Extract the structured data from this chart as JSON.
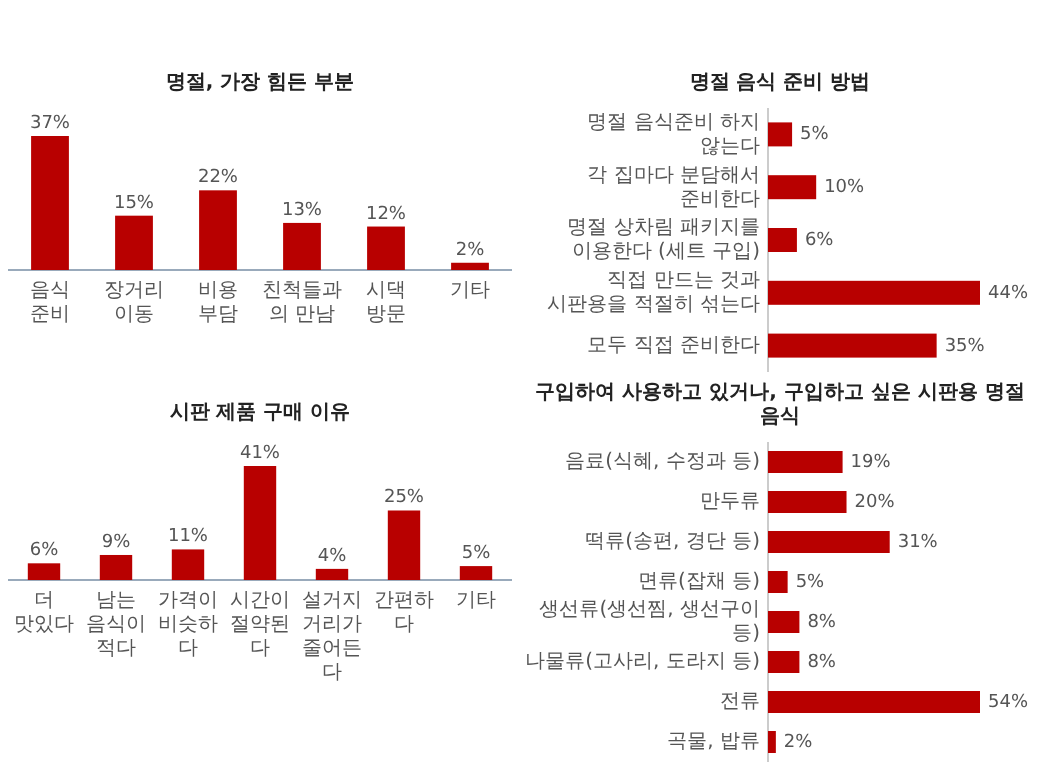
{
  "chart_data": [
    {
      "type": "bar",
      "title": "명절, 가장 힘든 부분",
      "categories": [
        "음식 준비",
        "장거리 이동",
        "비용 부담",
        "친척들과의 만남",
        "시댁 방문",
        "기타"
      ],
      "values": [
        37,
        15,
        22,
        13,
        12,
        2
      ],
      "value_labels": [
        "37%",
        "15%",
        "22%",
        "13%",
        "12%",
        "2%"
      ],
      "color": "#b80000"
    },
    {
      "type": "bar",
      "orientation": "horizontal",
      "title": "명절 음식 준비 방법",
      "categories": [
        "명절 음식준비 하지 않는다",
        "각 집마다 분담해서 준비한다",
        "명절 상차림 패키지를 이용한다 (세트 구입)",
        "직접 만드는 것과 시판용을 적절히 섞는다",
        "모두 직접 준비한다"
      ],
      "values": [
        5,
        10,
        6,
        44,
        35
      ],
      "value_labels": [
        "5%",
        "10%",
        "6%",
        "44%",
        "35%"
      ],
      "color": "#b80000"
    },
    {
      "type": "bar",
      "title": "시판 제품 구매 이유",
      "categories": [
        "더 맛있다",
        "남는 음식이 적다",
        "가격이 비슷하다",
        "시간이 절약된다",
        "설거지 거리가 줄어든다",
        "간편하다",
        "기타"
      ],
      "values": [
        6,
        9,
        11,
        41,
        4,
        25,
        5
      ],
      "value_labels": [
        "6%",
        "9%",
        "11%",
        "41%",
        "4%",
        "25%",
        "5%"
      ],
      "color": "#b80000"
    },
    {
      "type": "bar",
      "orientation": "horizontal",
      "title": "구입하여 사용하고 있거나, 구입하고 싶은 시판용 명절 음식",
      "categories": [
        "음료(식혜, 수정과 등)",
        "만두류",
        "떡류(송편, 경단 등)",
        "면류(잡채 등)",
        "생선류(생선찜, 생선구이 등)",
        "나물류(고사리, 도라지 등)",
        "전류",
        "곡물, 밥류"
      ],
      "values": [
        19,
        20,
        31,
        5,
        8,
        8,
        54,
        2
      ],
      "value_labels": [
        "19%",
        "20%",
        "31%",
        "5%",
        "8%",
        "8%",
        "54%",
        "2%"
      ],
      "color": "#b80000"
    }
  ]
}
